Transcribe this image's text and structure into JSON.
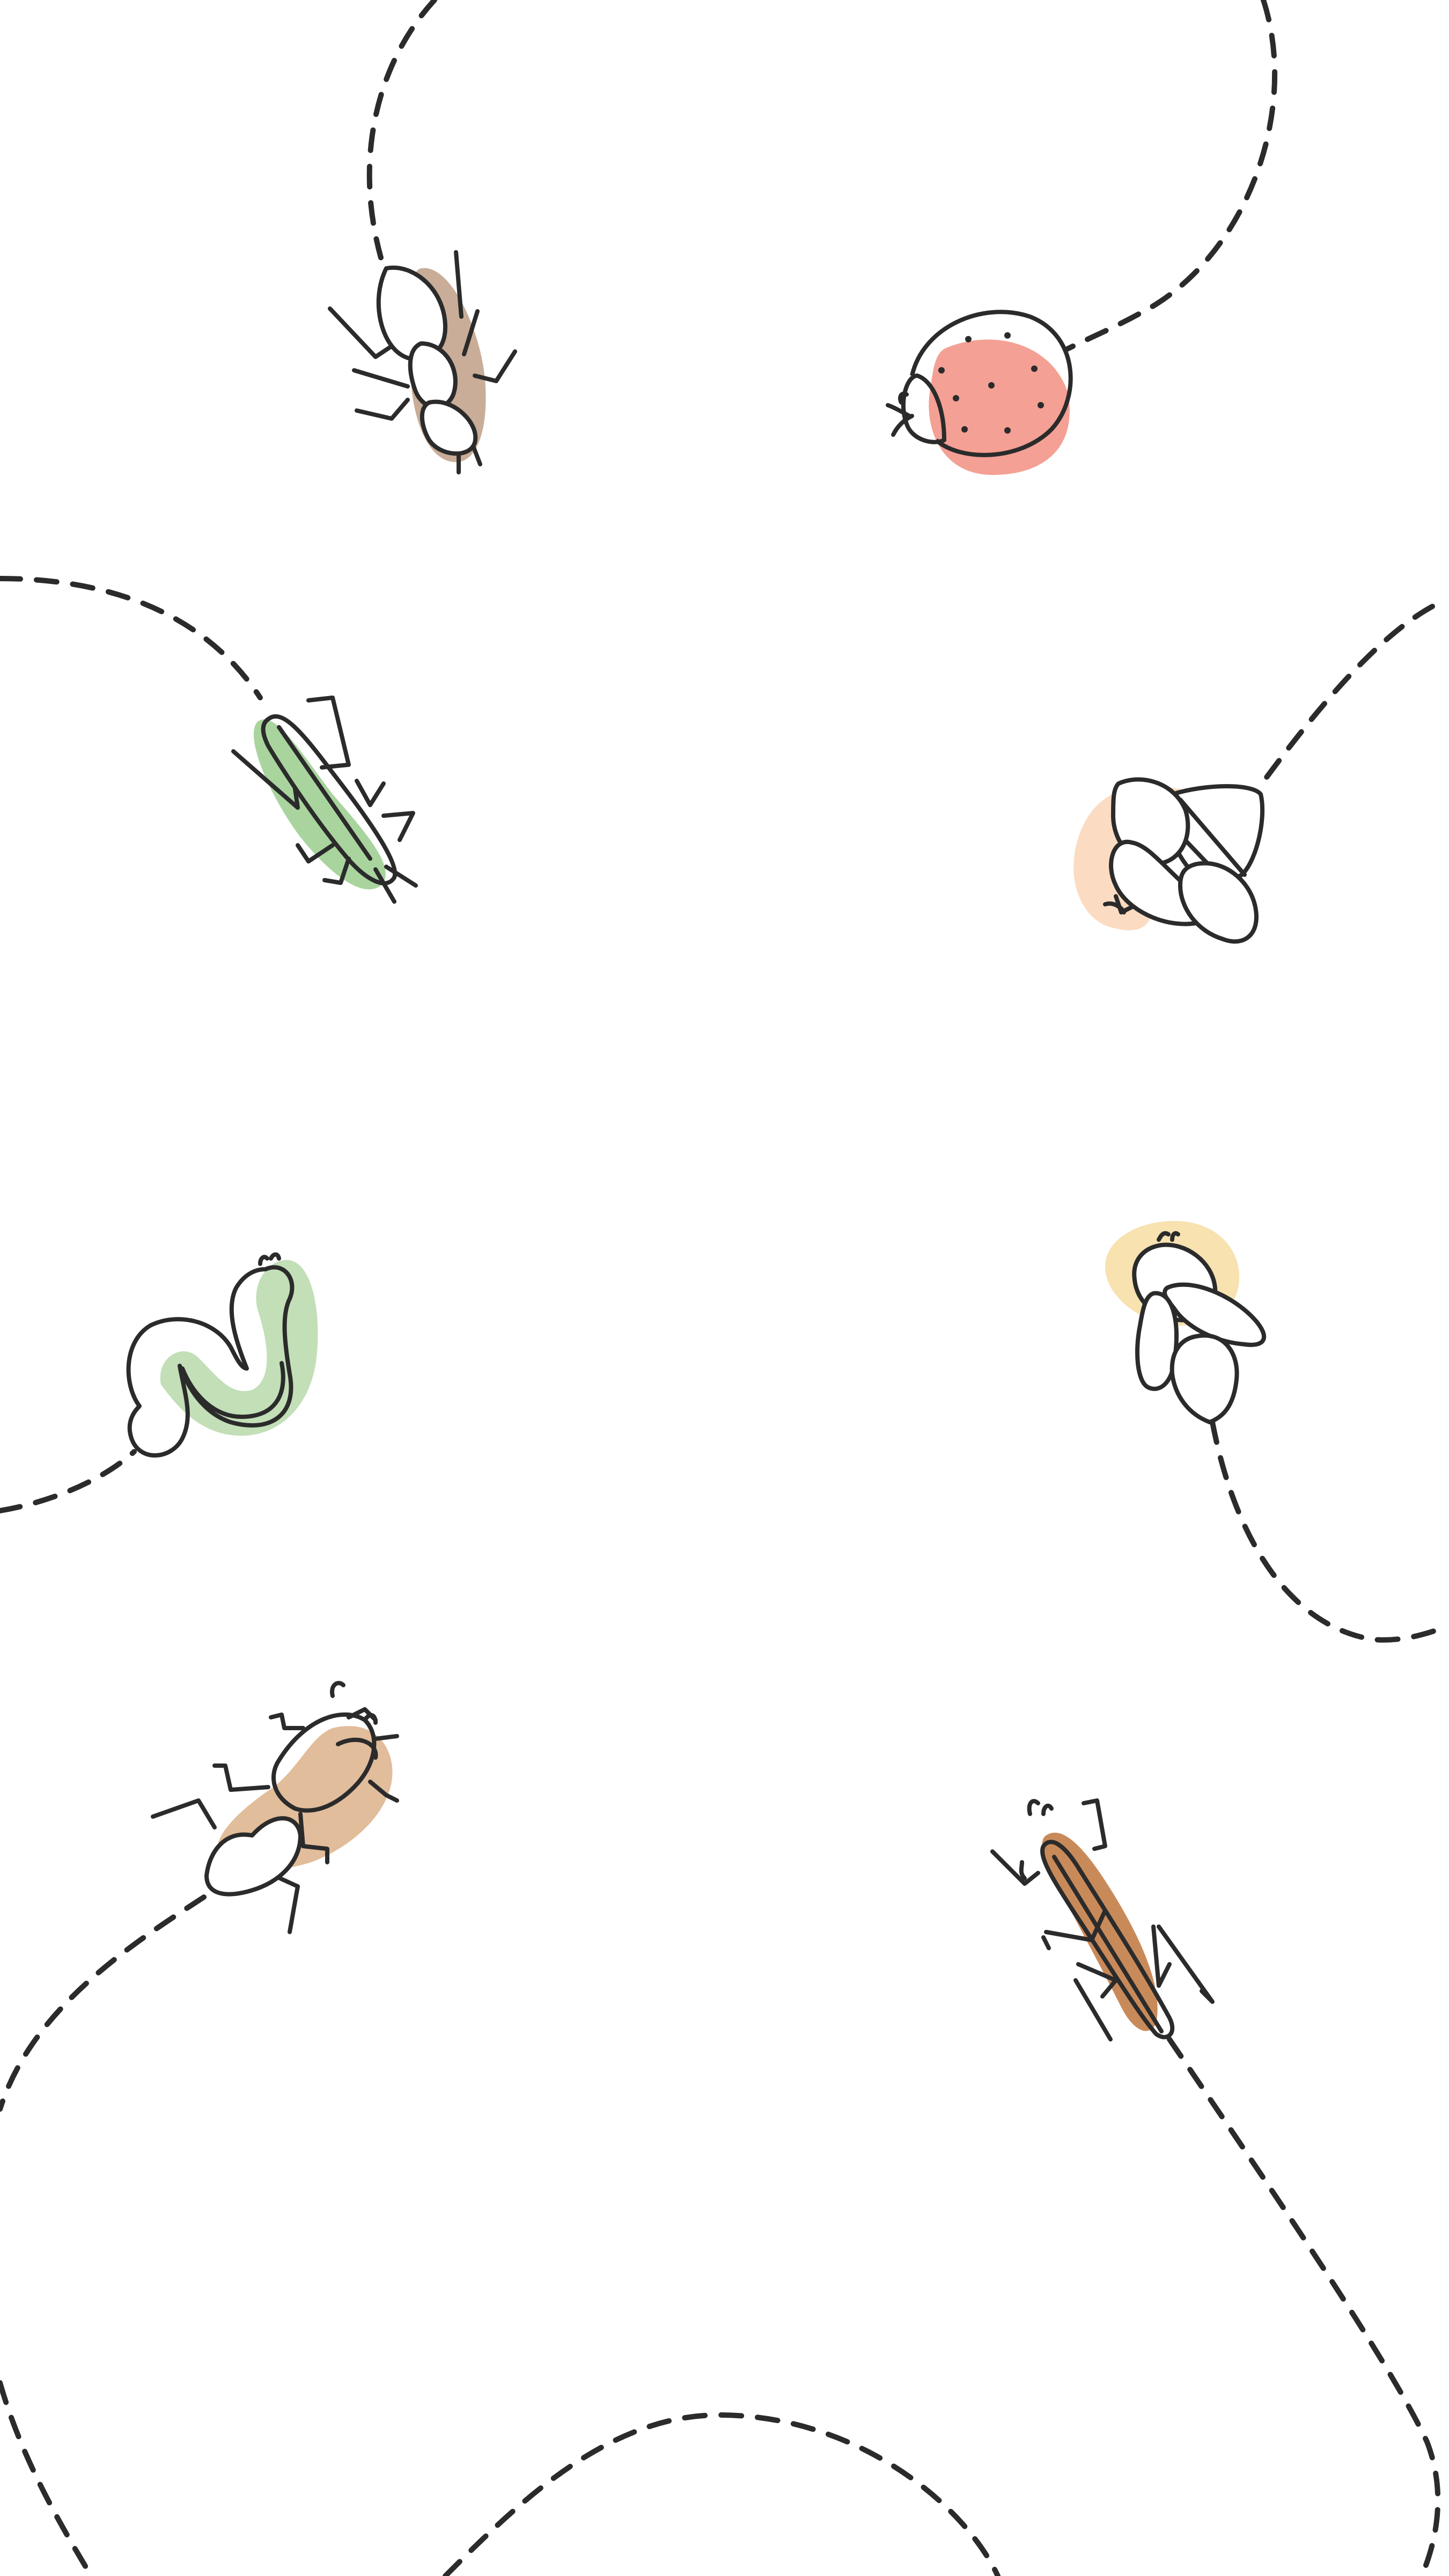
{
  "colors": {
    "background": "#ffffff",
    "ink": "#2b2b2b",
    "ant": "#c9ad98",
    "ladybug": "#f4a095",
    "grasshopper": "#a9d49e",
    "bee": "#fbdcc2",
    "worm": "#c2dfb8",
    "firefly": "#f7e2b0",
    "beetle": "#e2bd9b",
    "stick_bug": "#c98a5a"
  },
  "illustrations": [
    {
      "name": "ant-icon",
      "color_key": "ant"
    },
    {
      "name": "ladybug-icon",
      "color_key": "ladybug"
    },
    {
      "name": "grasshopper-icon",
      "color_key": "grasshopper"
    },
    {
      "name": "bee-icon",
      "color_key": "bee"
    },
    {
      "name": "worm-icon",
      "color_key": "worm"
    },
    {
      "name": "firefly-icon",
      "color_key": "firefly"
    },
    {
      "name": "beetle-icon",
      "color_key": "beetle"
    },
    {
      "name": "stick-bug-icon",
      "color_key": "stick_bug"
    }
  ],
  "trail_style": "dashed"
}
